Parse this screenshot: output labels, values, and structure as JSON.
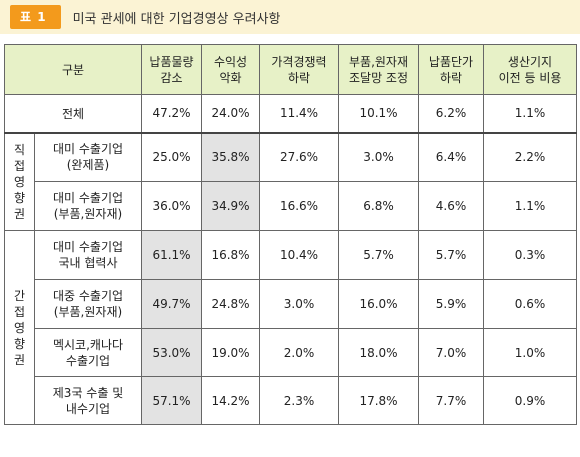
{
  "caption": {
    "badge": "표 1",
    "title": "미국 관세에 대한 기업경영상 우려사항"
  },
  "table": {
    "headers": {
      "category": "구분",
      "col1": [
        "납품물량",
        "감소"
      ],
      "col2": [
        "수익성",
        "악화"
      ],
      "col3": [
        "가격경쟁력",
        "하락"
      ],
      "col4": [
        "부품,원자재",
        "조달망 조정"
      ],
      "col5": [
        "납품단가",
        "하락"
      ],
      "col6": [
        "생산기지",
        "이전 등 비용"
      ]
    },
    "total": {
      "label": "전체",
      "values": [
        "47.2%",
        "24.0%",
        "11.4%",
        "10.1%",
        "6.2%",
        "1.1%"
      ]
    },
    "groups": {
      "direct": "직\n접\n영\n향\n권",
      "indirect": "간\n접\n영\n향\n권"
    },
    "rows": [
      {
        "label": [
          "대미 수출기업",
          "(완제품)"
        ],
        "values": [
          "25.0%",
          "35.8%",
          "27.6%",
          "3.0%",
          "6.4%",
          "2.2%"
        ]
      },
      {
        "label": [
          "대미 수출기업",
          "(부품,원자재)"
        ],
        "values": [
          "36.0%",
          "34.9%",
          "16.6%",
          "6.8%",
          "4.6%",
          "1.1%"
        ]
      },
      {
        "label": [
          "대미 수출기업",
          "국내 협력사"
        ],
        "values": [
          "61.1%",
          "16.8%",
          "10.4%",
          "5.7%",
          "5.7%",
          "0.3%"
        ]
      },
      {
        "label": [
          "대중 수출기업",
          "(부품,원자재)"
        ],
        "values": [
          "49.7%",
          "24.8%",
          "3.0%",
          "16.0%",
          "5.9%",
          "0.6%"
        ]
      },
      {
        "label": [
          "멕시코,캐나다",
          "수출기업"
        ],
        "values": [
          "53.0%",
          "19.0%",
          "2.0%",
          "18.0%",
          "7.0%",
          "1.0%"
        ]
      },
      {
        "label": [
          "제3국 수출 및",
          "내수기업"
        ],
        "values": [
          "57.1%",
          "14.2%",
          "2.3%",
          "17.8%",
          "7.7%",
          "0.9%"
        ]
      }
    ]
  }
}
